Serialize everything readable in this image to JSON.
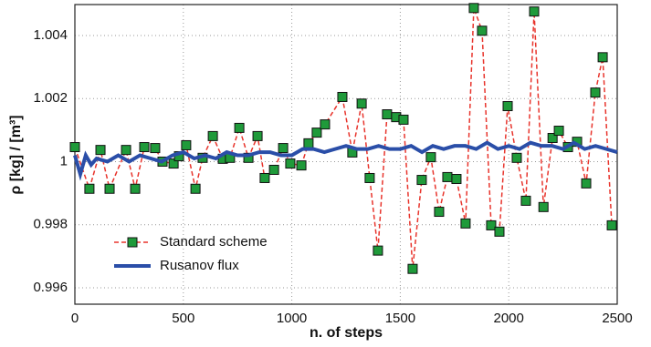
{
  "chart_data": {
    "type": "line",
    "xlabel": "n. of steps",
    "ylabel": "ρ [kg] / [m³]",
    "xlim": [
      0,
      2500
    ],
    "xticks": [
      0,
      500,
      1000,
      1500,
      2000,
      2500
    ],
    "ylim": [
      0.99548,
      1.00498
    ],
    "yticks": [
      0.996,
      0.998,
      1,
      1.002,
      1.004
    ],
    "grid": true,
    "legend": "lower left",
    "series": [
      {
        "name": "Standard scheme",
        "color": "#e8342c",
        "marker_color": "#1f9a3a",
        "style": "dashed-square",
        "x": [
          0,
          67,
          118,
          160,
          236,
          278,
          320,
          370,
          404,
          455,
          480,
          513,
          556,
          589,
          636,
          682,
          715,
          758,
          800,
          842,
          875,
          918,
          960,
          993,
          1044,
          1077,
          1115,
          1153,
          1233,
          1279,
          1322,
          1359,
          1397,
          1439,
          1481,
          1515,
          1557,
          1599,
          1641,
          1679,
          1717,
          1759,
          1801,
          1839,
          1877,
          1919,
          1957,
          1995,
          2037,
          2079,
          2117,
          2160,
          2202,
          2231,
          2273,
          2315,
          2357,
          2399,
          2433,
          2475
        ],
        "values": [
          1.00046,
          0.99914,
          1.00037,
          0.99914,
          1.00037,
          0.99914,
          1.00046,
          1.00043,
          1.0,
          0.99994,
          1.00017,
          1.00052,
          0.99914,
          1.00012,
          1.00081,
          1.00009,
          1.00012,
          1.00107,
          1.00012,
          1.00081,
          0.99948,
          0.99974,
          1.00043,
          0.99994,
          0.99988,
          1.00058,
          1.00092,
          1.00118,
          1.00205,
          1.00029,
          1.00184,
          0.99948,
          0.99718,
          1.0015,
          1.00141,
          1.00133,
          0.9966,
          0.99942,
          1.00014,
          0.99841,
          0.99951,
          0.99945,
          0.99804,
          1.00487,
          1.00415,
          0.99798,
          0.99778,
          1.00176,
          1.00012,
          0.99876,
          1.00476,
          0.99856,
          1.00075,
          1.00098,
          1.00046,
          1.00063,
          0.99931,
          1.00219,
          1.00331,
          0.99798
        ]
      },
      {
        "name": "Rusanov flux",
        "color": "#2a4ea8",
        "style": "solid",
        "x": [
          0,
          25,
          50,
          75,
          100,
          150,
          200,
          250,
          300,
          350,
          400,
          450,
          500,
          550,
          600,
          650,
          700,
          750,
          800,
          850,
          900,
          950,
          1000,
          1050,
          1100,
          1150,
          1200,
          1250,
          1300,
          1350,
          1400,
          1450,
          1500,
          1550,
          1600,
          1650,
          1700,
          1750,
          1800,
          1850,
          1900,
          1950,
          2000,
          2050,
          2100,
          2150,
          2200,
          2250,
          2300,
          2350,
          2400,
          2450,
          2500
        ],
        "values": [
          1.0002,
          0.9996,
          1.0002,
          0.9999,
          1.0001,
          1.0,
          1.0002,
          1.0,
          1.0002,
          1.0001,
          1.0,
          1.0002,
          1.0003,
          1.0001,
          1.0002,
          1.0001,
          1.0003,
          1.0002,
          1.0002,
          1.0003,
          1.0003,
          1.0002,
          1.0002,
          1.0004,
          1.0004,
          1.0003,
          1.0004,
          1.0005,
          1.0004,
          1.0004,
          1.0005,
          1.0004,
          1.0004,
          1.0005,
          1.0003,
          1.0005,
          1.0004,
          1.0005,
          1.0005,
          1.0004,
          1.0006,
          1.0004,
          1.0005,
          1.0004,
          1.0006,
          1.0005,
          1.0005,
          1.0004,
          1.0006,
          1.0004,
          1.0005,
          1.0004,
          1.0003
        ]
      }
    ]
  }
}
